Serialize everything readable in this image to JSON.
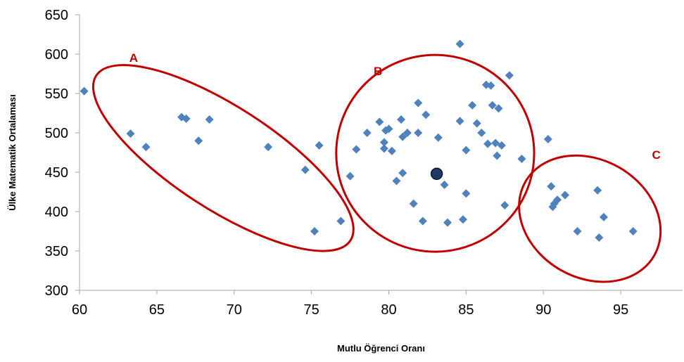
{
  "chart_data": {
    "type": "scatter",
    "title": "",
    "xlabel": "Mutlu Öğrenci Oranı",
    "ylabel": "Ülke Matematik Ortalaması",
    "xlim": [
      60,
      99
    ],
    "ylim": [
      300,
      650
    ],
    "xticks": [
      60,
      65,
      70,
      75,
      80,
      85,
      90,
      95
    ],
    "yticks": [
      300,
      350,
      400,
      450,
      500,
      550,
      600,
      650
    ],
    "grid": false,
    "legend": "none",
    "colors": {
      "points": "#4F81BD",
      "ellipse": "#C00000",
      "highlight": "#1F3864",
      "axis": "#A6A6A6"
    },
    "series": [
      {
        "points": [
          [
            60.3,
            553
          ],
          [
            63.3,
            499
          ],
          [
            64.3,
            482
          ],
          [
            66.6,
            520
          ],
          [
            66.9,
            518
          ],
          [
            67.7,
            490
          ],
          [
            68.4,
            517
          ],
          [
            72.2,
            482
          ],
          [
            74.6,
            453
          ],
          [
            75.2,
            375
          ],
          [
            75.5,
            484
          ],
          [
            76.9,
            388
          ],
          [
            77.5,
            445
          ],
          [
            77.9,
            479
          ],
          [
            78.6,
            500
          ],
          [
            79.4,
            514
          ],
          [
            79.7,
            488
          ],
          [
            79.7,
            480
          ],
          [
            79.8,
            503
          ],
          [
            80.0,
            505
          ],
          [
            80.2,
            477
          ],
          [
            80.5,
            439
          ],
          [
            80.8,
            517
          ],
          [
            80.9,
            495
          ],
          [
            80.9,
            449
          ],
          [
            81.2,
            500
          ],
          [
            81.6,
            410
          ],
          [
            81.9,
            538
          ],
          [
            81.9,
            500
          ],
          [
            82.2,
            388
          ],
          [
            82.4,
            523
          ],
          [
            83.2,
            494
          ],
          [
            83.6,
            434
          ],
          [
            83.8,
            386
          ],
          [
            84.6,
            515
          ],
          [
            84.6,
            613
          ],
          [
            84.8,
            390
          ],
          [
            85.0,
            478
          ],
          [
            85.0,
            423
          ],
          [
            85.4,
            535
          ],
          [
            85.7,
            512
          ],
          [
            86.0,
            500
          ],
          [
            86.3,
            561
          ],
          [
            86.4,
            486
          ],
          [
            86.6,
            560
          ],
          [
            86.7,
            535
          ],
          [
            86.9,
            487
          ],
          [
            87.0,
            471
          ],
          [
            87.1,
            531
          ],
          [
            87.3,
            484
          ],
          [
            87.5,
            408
          ],
          [
            87.8,
            573
          ],
          [
            88.6,
            467
          ],
          [
            90.3,
            492
          ],
          [
            90.5,
            432
          ],
          [
            90.6,
            406
          ],
          [
            90.7,
            410
          ],
          [
            90.9,
            415
          ],
          [
            91.4,
            421
          ],
          [
            92.2,
            375
          ],
          [
            93.5,
            427
          ],
          [
            93.6,
            367
          ],
          [
            93.9,
            393
          ],
          [
            95.8,
            375
          ]
        ]
      }
    ],
    "highlight_point": [
      83.1,
      448
    ],
    "groups": [
      {
        "label": "A",
        "center": [
          69.3,
          468
        ],
        "rx": 9.8,
        "ry": 65,
        "rotate_deg": 33,
        "label_pos": [
          63.5,
          590
        ]
      },
      {
        "label": "B",
        "center": [
          83.0,
          474
        ],
        "rx": 6.4,
        "ry": 125,
        "rotate_deg": 0,
        "label_pos": [
          79.3,
          573
        ]
      },
      {
        "label": "C",
        "center": [
          93.0,
          391
        ],
        "rx": 4.8,
        "ry": 75,
        "rotate_deg": 30,
        "label_pos": [
          97.3,
          467
        ]
      }
    ]
  }
}
